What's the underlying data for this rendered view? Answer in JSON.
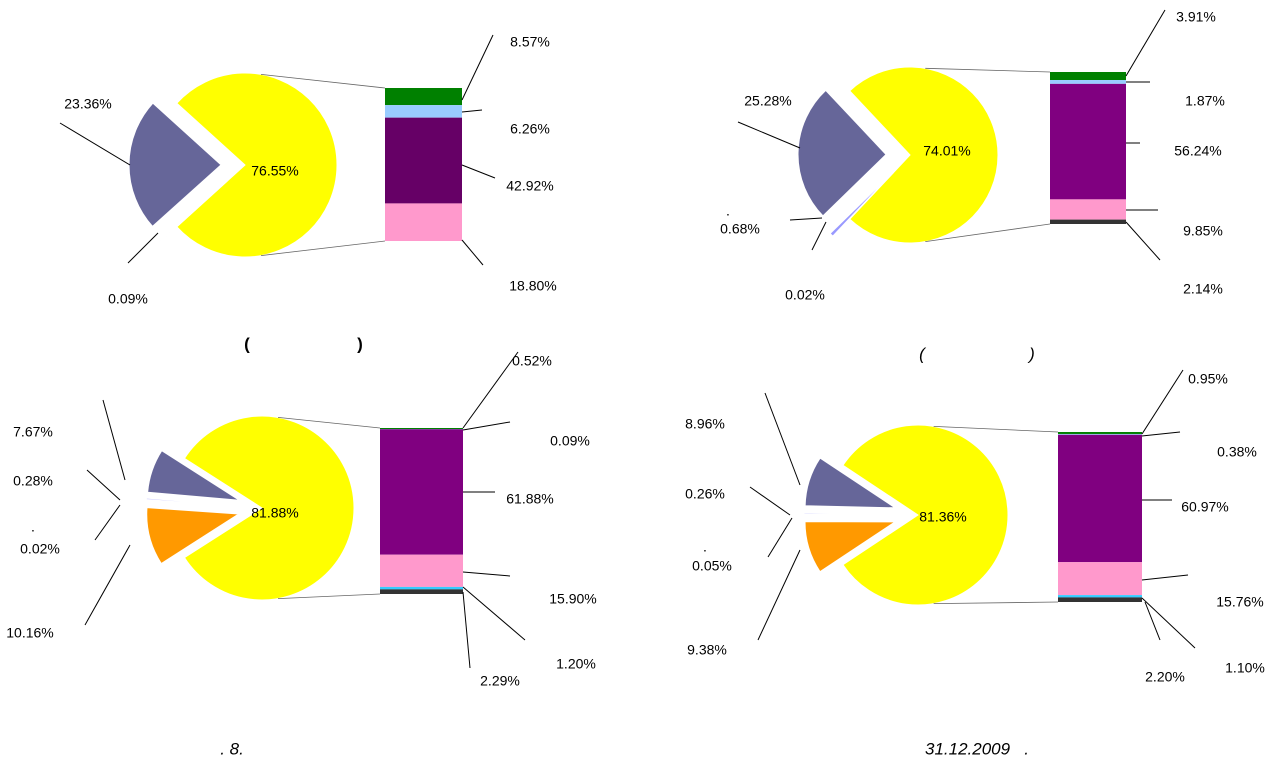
{
  "chart_data": [
    {
      "type": "bar_of_pie",
      "pie": {
        "values": [
          76.55,
          23.36,
          0.09
        ],
        "value_labels": [
          "76.55%",
          "23.36%",
          "0.09%"
        ],
        "colors": [
          "#ffff00",
          "#666699",
          "#ccccff"
        ]
      },
      "bar": {
        "values": [
          8.57,
          6.26,
          42.92,
          18.8
        ],
        "value_labels": [
          "8.57%",
          "6.26%",
          "42.92%",
          "18.80%"
        ],
        "colors": [
          "#008000",
          "#99ccff",
          "#660066",
          "#ff99cc"
        ]
      },
      "captions": [
        "(",
        ")"
      ]
    },
    {
      "type": "bar_of_pie",
      "pie": {
        "values": [
          74.01,
          25.28,
          0.68,
          0.02
        ],
        "value_labels": [
          "74.01%",
          "25.28%",
          "0.68%",
          "0.02%"
        ],
        "colors": [
          "#ffff00",
          "#666699",
          "#9999ff",
          "#ccccff"
        ]
      },
      "bar": {
        "values": [
          3.91,
          1.87,
          56.24,
          9.85,
          2.14
        ],
        "value_labels": [
          "3.91%",
          "1.87%",
          "56.24%",
          "9.85%",
          "2.14%"
        ],
        "colors": [
          "#008000",
          "#99ccff",
          "#800080",
          "#ff99cc",
          "#333333"
        ]
      },
      "captions": [
        "(",
        ")"
      ],
      "annotations": [
        "."
      ]
    },
    {
      "type": "bar_of_pie",
      "pie": {
        "values": [
          81.88,
          7.67,
          0.28,
          0.02,
          10.16
        ],
        "value_labels": [
          "81.88%",
          "7.67%",
          "0.28%",
          "0.02%",
          "10.16%"
        ],
        "colors": [
          "#ffff00",
          "#666699",
          "#ccccff",
          "#9999ff",
          "#ff9900"
        ]
      },
      "bar": {
        "values": [
          0.52,
          0.09,
          61.88,
          15.9,
          1.2,
          2.29
        ],
        "value_labels": [
          "0.52%",
          "0.09%",
          "61.88%",
          "15.90%",
          "1.20%",
          "2.29%"
        ],
        "colors": [
          "#008000",
          "#99ccff",
          "#800080",
          "#ff99cc",
          "#33ccff",
          "#333333"
        ]
      },
      "captions": [
        ". 8."
      ],
      "annotations": [
        "."
      ]
    },
    {
      "type": "bar_of_pie",
      "pie": {
        "values": [
          81.36,
          8.96,
          0.26,
          0.05,
          9.38
        ],
        "value_labels": [
          "81.36%",
          "8.96%",
          "0.26%",
          "0.05%",
          "9.38%"
        ],
        "colors": [
          "#ffff00",
          "#666699",
          "#ccccff",
          "#9999ff",
          "#ff9900"
        ]
      },
      "bar": {
        "values": [
          0.95,
          0.38,
          60.97,
          15.76,
          1.1,
          2.2
        ],
        "value_labels": [
          "0.95%",
          "0.38%",
          "60.97%",
          "15.76%",
          "1.10%",
          "2.20%"
        ],
        "colors": [
          "#008000",
          "#99ccff",
          "#800080",
          "#ff99cc",
          "#33ccff",
          "#333333"
        ]
      },
      "captions": [
        "31.12.2009   ."
      ],
      "annotations": [
        "."
      ]
    }
  ]
}
